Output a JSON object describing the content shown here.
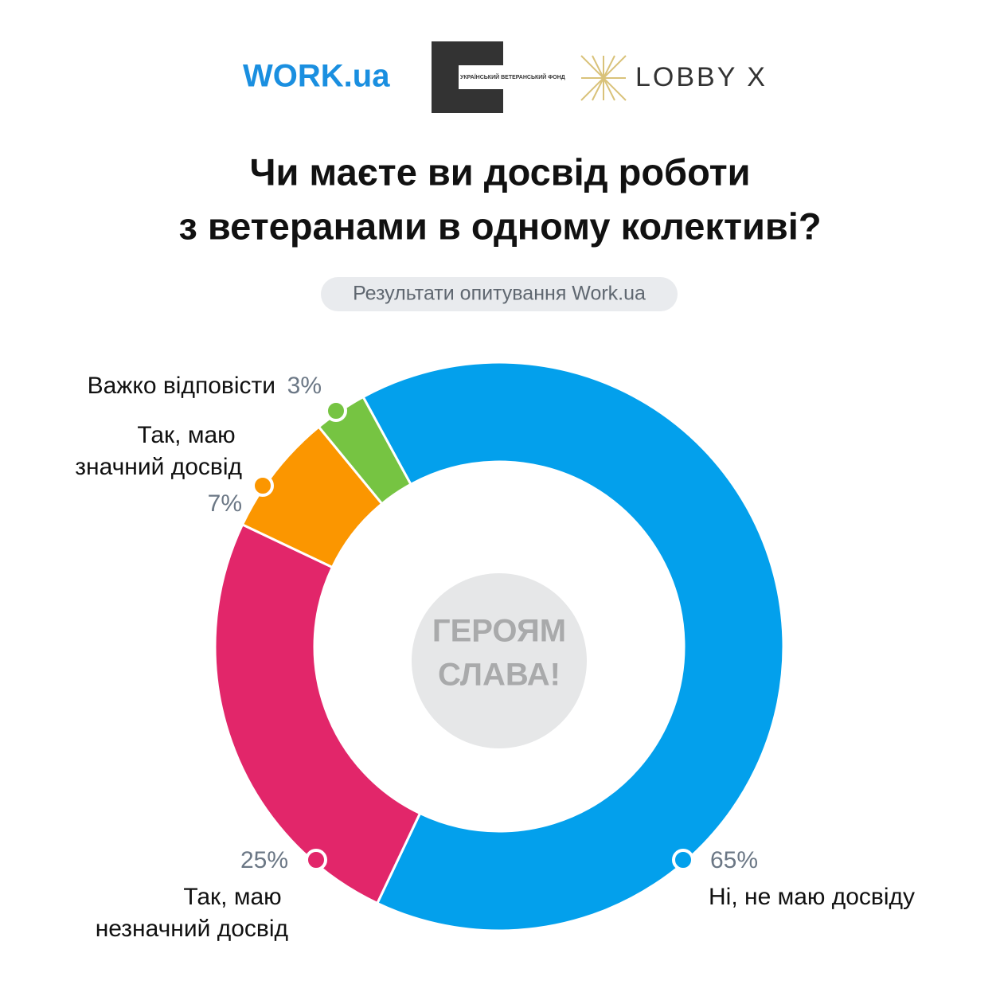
{
  "header": {
    "logo_work": "WORK.ua",
    "logo_fund": "УКРАЇНСЬКИЙ ВЕТЕРАНСЬКИЙ ФОНД",
    "logo_lobby": "LOBBY X"
  },
  "chart_data": {
    "type": "donut",
    "title_lines": [
      "Чи маєте ви досвід роботи",
      "з ветеранами в одному колективі?"
    ],
    "subtitle": "Результати опитування Work.ua",
    "categories": [
      "Ні, не маю досвіду",
      "Так, маю незначний досвід",
      "Так, маю значний досвід",
      "Важко відповісти"
    ],
    "values": [
      65,
      25,
      7,
      3
    ],
    "value_labels": [
      "65%",
      "25%",
      "7%",
      "3%"
    ],
    "colors": [
      "#03a0ec",
      "#e2266a",
      "#fb9600",
      "#76c442"
    ],
    "center_logo_lines": [
      "ГЕРОЯМ",
      "СЛАВА!"
    ]
  }
}
